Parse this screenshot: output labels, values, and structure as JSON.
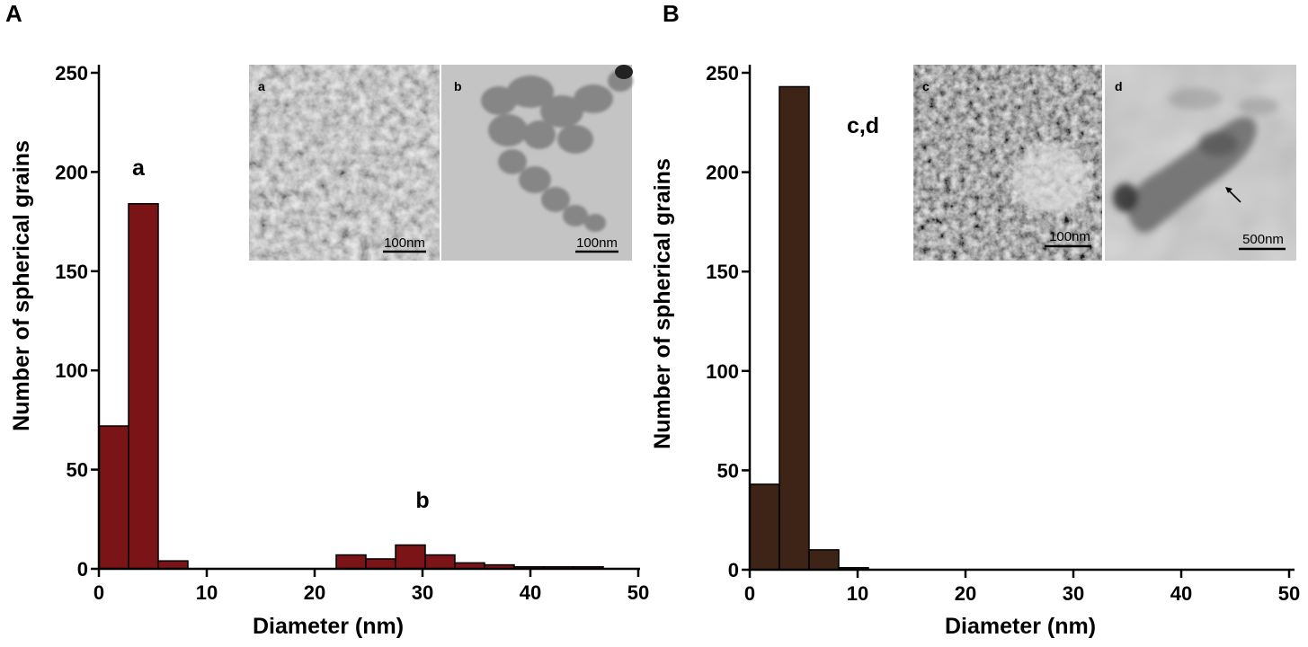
{
  "colors": {
    "panel_a_bar": "#7a1416",
    "panel_b_bar": "#3d2417",
    "axis": "#000000"
  },
  "chart_data": [
    {
      "type": "bar",
      "panel_label": "A",
      "xlabel": "Diameter (nm)",
      "ylabel": "Number of spherical grains",
      "xlim": [
        0,
        50
      ],
      "ylim": [
        0,
        250
      ],
      "xticks": [
        "0",
        "10",
        "20",
        "30",
        "40",
        "50"
      ],
      "yticks": [
        "0",
        "50",
        "100",
        "150",
        "200",
        "250"
      ],
      "grid": false,
      "bins": [
        {
          "x0": 0.0,
          "x1": 2.75,
          "value": 72
        },
        {
          "x0": 2.75,
          "x1": 5.5,
          "value": 184
        },
        {
          "x0": 5.5,
          "x1": 8.25,
          "value": 4
        },
        {
          "x0": 22.0,
          "x1": 24.75,
          "value": 7
        },
        {
          "x0": 24.75,
          "x1": 27.5,
          "value": 5
        },
        {
          "x0": 27.5,
          "x1": 30.25,
          "value": 12
        },
        {
          "x0": 30.25,
          "x1": 33.0,
          "value": 7
        },
        {
          "x0": 33.0,
          "x1": 35.75,
          "value": 3
        },
        {
          "x0": 35.75,
          "x1": 38.5,
          "value": 2
        },
        {
          "x0": 38.5,
          "x1": 41.25,
          "value": 1
        },
        {
          "x0": 41.25,
          "x1": 44.0,
          "value": 1
        },
        {
          "x0": 44.0,
          "x1": 46.75,
          "value": 1
        }
      ],
      "annotations": [
        {
          "text": "a",
          "x": 3.5,
          "y": 200
        },
        {
          "text": "b",
          "x": 29.5,
          "y": 33
        }
      ],
      "insets": [
        {
          "label": "a",
          "scale_bar": "100nm",
          "texture": "fine-agglomerate"
        },
        {
          "label": "b",
          "scale_bar": "100nm",
          "texture": "large-spheres"
        }
      ]
    },
    {
      "type": "bar",
      "panel_label": "B",
      "xlabel": "Diameter (nm)",
      "ylabel": "Number of spherical grains",
      "xlim": [
        0,
        50
      ],
      "ylim": [
        0,
        250
      ],
      "xticks": [
        "0",
        "10",
        "20",
        "30",
        "40",
        "50"
      ],
      "yticks": [
        "0",
        "50",
        "100",
        "150",
        "200",
        "250"
      ],
      "grid": false,
      "bins": [
        {
          "x0": 0.0,
          "x1": 2.75,
          "value": 43
        },
        {
          "x0": 2.75,
          "x1": 5.5,
          "value": 243
        },
        {
          "x0": 5.5,
          "x1": 8.25,
          "value": 10
        },
        {
          "x0": 8.25,
          "x1": 11.0,
          "value": 1
        }
      ],
      "annotations": [
        {
          "text": "c,d",
          "x": 11,
          "y": 222
        }
      ],
      "insets": [
        {
          "label": "c",
          "scale_bar": "100nm",
          "texture": "dense-network"
        },
        {
          "label": "d",
          "scale_bar": "500nm",
          "texture": "rod-particle"
        }
      ]
    }
  ]
}
